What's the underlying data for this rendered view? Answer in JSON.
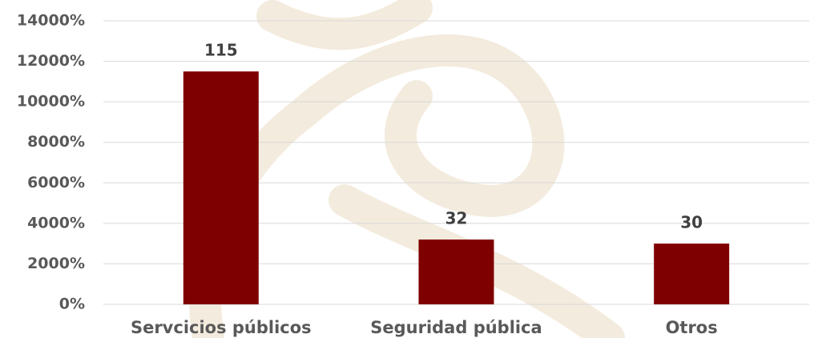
{
  "chart_data": {
    "type": "bar",
    "categories": [
      "Servcicios públicos",
      "Seguridad pública",
      "Otros"
    ],
    "values": [
      11500,
      3200,
      3000
    ],
    "value_labels": [
      "115",
      "32",
      "30"
    ],
    "color": "#7f0000",
    "ylim": [
      0,
      14000
    ],
    "yticks": [
      {
        "value": 0,
        "label": "0%"
      },
      {
        "value": 2000,
        "label": "2000%"
      },
      {
        "value": 4000,
        "label": "4000%"
      },
      {
        "value": 6000,
        "label": "6000%"
      },
      {
        "value": 8000,
        "label": "8000%"
      },
      {
        "value": 10000,
        "label": "10000%"
      },
      {
        "value": 12000,
        "label": "12000%"
      },
      {
        "value": 14000,
        "label": "14000%"
      }
    ],
    "grid": true
  }
}
